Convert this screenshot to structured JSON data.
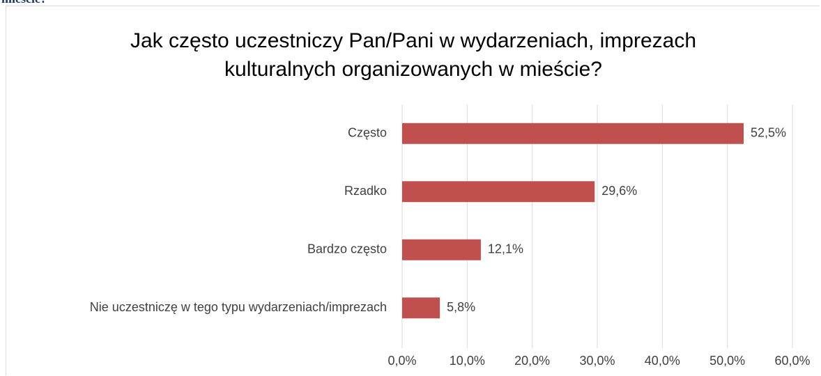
{
  "page_heading_fragment": "mieście?",
  "chart_data": {
    "type": "hbar",
    "title": "Jak często uczestniczy Pan/Pani w wydarzeniach, imprezach kulturalnych organizowanych w mieście?",
    "categories": [
      "Często",
      "Rzadko",
      "Bardzo często",
      "Nie uczestniczę w tego typu wydarzeniach/imprezach"
    ],
    "values": [
      52.5,
      29.6,
      12.1,
      5.8
    ],
    "value_labels": [
      "52,5%",
      "29,6%",
      "12,1%",
      "5,8%"
    ],
    "color": "#c0504d",
    "xlim": [
      0,
      60
    ],
    "xticks": [
      {
        "value": 0,
        "label": "0,0%"
      },
      {
        "value": 10,
        "label": "10,0%"
      },
      {
        "value": 20,
        "label": "20,0%"
      },
      {
        "value": 30,
        "label": "30,0%"
      },
      {
        "value": 40,
        "label": "40,0%"
      },
      {
        "value": 50,
        "label": "50,0%"
      },
      {
        "value": 60,
        "label": "60,0%"
      }
    ],
    "grid": true
  }
}
